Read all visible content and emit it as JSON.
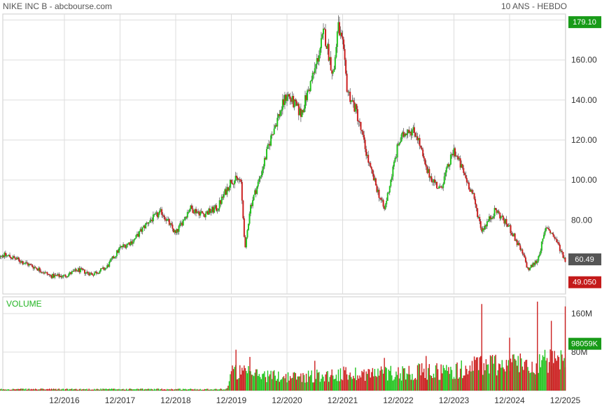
{
  "header": {
    "title": "NIKE INC B - abcbourse.com",
    "period": "10 ANS - HEBDO"
  },
  "chart_data": {
    "type": "candlestick",
    "title": "NIKE INC B - abcbourse.com",
    "period": "10 ANS - HEBDO",
    "x_ticks": [
      "12/2016",
      "12/2017",
      "12/2018",
      "12/2019",
      "12/2020",
      "12/2021",
      "12/2022",
      "12/2023",
      "12/2024",
      "12/2025"
    ],
    "price_axis": {
      "ticks": [
        "80.00",
        "100.00",
        "120.00",
        "140.00",
        "160.00"
      ],
      "ylim": [
        43,
        183
      ]
    },
    "price_badges": [
      {
        "label": "179.10",
        "value": 179.1,
        "color": "#189b18"
      },
      {
        "label": "60.49",
        "value": 60.49,
        "color": "#555555"
      },
      {
        "label": "49.050",
        "value": 49.05,
        "color": "#c41a1a"
      }
    ],
    "volume_axis": {
      "label": "VOLUME",
      "ticks": [
        "80M",
        "160M"
      ],
      "ylim": [
        0,
        195
      ]
    },
    "volume_badge": {
      "label": "98059K",
      "value": 98.059,
      "color": "#189b18"
    },
    "colors": {
      "up": "#22c41e",
      "down": "#cc2020",
      "grid": "#dddddd",
      "volume_label": "#22b422"
    },
    "price_keypoints": [
      [
        "2015-09",
        63
      ],
      [
        "2015-12",
        62
      ],
      [
        "2016-03",
        59
      ],
      [
        "2016-06",
        56
      ],
      [
        "2016-09",
        52
      ],
      [
        "2016-12",
        52
      ],
      [
        "2017-03",
        55
      ],
      [
        "2017-06",
        53
      ],
      [
        "2017-09",
        56
      ],
      [
        "2017-12",
        66
      ],
      [
        "2018-03",
        70
      ],
      [
        "2018-06",
        79
      ],
      [
        "2018-09",
        84
      ],
      [
        "2018-12",
        73
      ],
      [
        "2019-03",
        86
      ],
      [
        "2019-06",
        83
      ],
      [
        "2019-09",
        86
      ],
      [
        "2019-12",
        100
      ],
      [
        "2020-02",
        100
      ],
      [
        "2020-03",
        65
      ],
      [
        "2020-04",
        86
      ],
      [
        "2020-06",
        100
      ],
      [
        "2020-09",
        125
      ],
      [
        "2020-12",
        143
      ],
      [
        "2021-03",
        133
      ],
      [
        "2021-06",
        155
      ],
      [
        "2021-08",
        174
      ],
      [
        "2021-10",
        152
      ],
      [
        "2021-11",
        177
      ],
      [
        "2021-12",
        167
      ],
      [
        "2022-01",
        145
      ],
      [
        "2022-03",
        134
      ],
      [
        "2022-06",
        105
      ],
      [
        "2022-09",
        85
      ],
      [
        "2022-12",
        118
      ],
      [
        "2023-02",
        126
      ],
      [
        "2023-04",
        123
      ],
      [
        "2023-06",
        105
      ],
      [
        "2023-09",
        95
      ],
      [
        "2023-12",
        115
      ],
      [
        "2024-02",
        104
      ],
      [
        "2024-04",
        93
      ],
      [
        "2024-06",
        75
      ],
      [
        "2024-09",
        85
      ],
      [
        "2024-12",
        76
      ],
      [
        "2025-03",
        62
      ],
      [
        "2025-04",
        55
      ],
      [
        "2025-06",
        60
      ],
      [
        "2025-08",
        77
      ],
      [
        "2025-10",
        70
      ],
      [
        "2025-12",
        60
      ]
    ],
    "volume_keypoints": [
      [
        "2015-09",
        3
      ],
      [
        "2019-11",
        3
      ],
      [
        "2019-12",
        40
      ],
      [
        "2020-06",
        33
      ],
      [
        "2021-01",
        28
      ],
      [
        "2022-01",
        35
      ],
      [
        "2023-01",
        38
      ],
      [
        "2024-01",
        42
      ],
      [
        "2024-06",
        55
      ],
      [
        "2025-12",
        60
      ]
    ],
    "volume_spikes": [
      [
        "2020-01",
        85
      ],
      [
        "2020-04",
        70
      ],
      [
        "2021-06",
        62
      ],
      [
        "2022-09",
        68
      ],
      [
        "2023-06",
        72
      ],
      [
        "2024-06",
        180
      ],
      [
        "2024-12",
        110
      ],
      [
        "2025-06",
        185
      ],
      [
        "2025-09",
        145
      ],
      [
        "2025-12",
        175
      ]
    ]
  }
}
